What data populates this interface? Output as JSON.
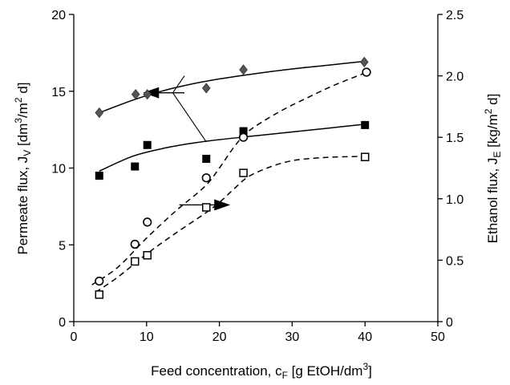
{
  "chart_data": {
    "type": "scatter",
    "title": "",
    "xlabel": {
      "main": "Feed concentration, c",
      "sub": "F",
      "rest": " [g EtOH/dm",
      "sup": "3",
      "end": "]"
    },
    "ylabel_left": {
      "main": "Permeate flux, J",
      "sub": "V",
      "rest": " [dm",
      "sup1": "3",
      "mid": "/m",
      "sup2": "2",
      "end": " d]"
    },
    "ylabel_right": {
      "main": "Ethanol flux, J",
      "sub": "E",
      "rest": " [kg/m",
      "sup": "2",
      "end": " d]"
    },
    "xlim": [
      0,
      50
    ],
    "ylim_left": [
      0,
      20
    ],
    "ylim_right": [
      0,
      2.5
    ],
    "xticks": [
      "0",
      "10",
      "20",
      "30",
      "40",
      "50"
    ],
    "yticks_left": [
      "0",
      "5",
      "10",
      "15",
      "20"
    ],
    "yticks_right": [
      "0",
      "0.5",
      "1.0",
      "1.5",
      "2.0",
      "2.5"
    ],
    "grid": false,
    "colors": {
      "marker": "#000000",
      "diamond": "#555555",
      "line": "#000000"
    },
    "series": [
      {
        "marker": "diamond",
        "axis": "left",
        "x": [
          3.5,
          8.5,
          10.1,
          18.2,
          23.3,
          39.9
        ],
        "y": [
          13.6,
          14.8,
          14.8,
          15.2,
          16.4,
          16.9
        ],
        "fit": {
          "style": "solid",
          "x": [
            3.5,
            8,
            12,
            16,
            20,
            25,
            30,
            35,
            40
          ],
          "y": [
            13.6,
            14.4,
            15.0,
            15.45,
            15.8,
            16.15,
            16.45,
            16.7,
            16.95
          ]
        }
      },
      {
        "marker": "square-filled",
        "axis": "left",
        "x": [
          3.5,
          8.4,
          10.1,
          18.2,
          23.3,
          40.0
        ],
        "y": [
          9.5,
          10.1,
          11.5,
          10.6,
          12.4,
          12.8
        ],
        "fit": {
          "style": "solid",
          "x": [
            3.5,
            8,
            12,
            16,
            20,
            25,
            30,
            35,
            40
          ],
          "y": [
            9.8,
            10.75,
            11.25,
            11.6,
            11.85,
            12.1,
            12.35,
            12.6,
            12.85
          ]
        }
      },
      {
        "marker": "circle-open",
        "axis": "right",
        "x": [
          3.5,
          8.4,
          10.1,
          18.2,
          23.3,
          40.2
        ],
        "y": [
          0.33,
          0.63,
          0.81,
          1.17,
          1.5,
          2.03
        ],
        "fit": {
          "style": "dashed",
          "x": [
            2.5,
            6,
            10,
            14,
            18,
            20,
            22,
            24,
            28,
            32,
            36,
            40.3
          ],
          "y": [
            0.3,
            0.44,
            0.68,
            0.9,
            1.1,
            1.25,
            1.42,
            1.55,
            1.7,
            1.82,
            1.93,
            2.03
          ]
        }
      },
      {
        "marker": "square-open",
        "axis": "right",
        "x": [
          3.5,
          8.4,
          10.1,
          18.2,
          23.3,
          40.0
        ],
        "y": [
          0.22,
          0.49,
          0.54,
          0.93,
          1.21,
          1.34
        ],
        "fit": {
          "style": "dashed",
          "x": [
            3,
            6,
            10,
            14,
            18,
            20,
            22,
            24,
            27,
            30,
            33,
            36,
            40.2
          ],
          "y": [
            0.24,
            0.36,
            0.55,
            0.72,
            0.88,
            0.97,
            1.08,
            1.18,
            1.26,
            1.31,
            1.33,
            1.34,
            1.345
          ]
        }
      }
    ],
    "annotations": [
      {
        "type": "arrow",
        "target_axis": "left",
        "tail": [
          15.2,
          14.9
        ],
        "tip": [
          9.5,
          14.9
        ]
      },
      {
        "type": "arrow",
        "target_axis": "right",
        "tail": [
          14.5,
          0.95
        ],
        "tip": [
          21.5,
          0.95
        ]
      },
      {
        "type": "pointer-lines",
        "from": [
          13.6,
          14.9
        ],
        "to": [
          [
            15.2,
            16.0
          ],
          [
            18.2,
            11.7
          ]
        ]
      }
    ]
  }
}
